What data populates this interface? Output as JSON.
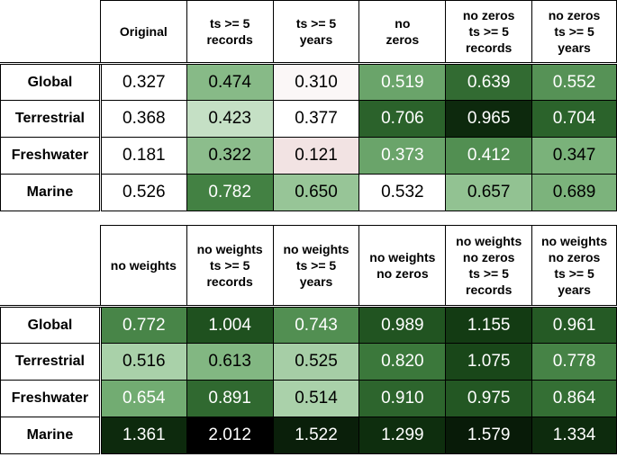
{
  "chart_data": [
    {
      "type": "heatmap",
      "columns": [
        "Original",
        "ts >= 5\nrecords",
        "ts >= 5\nyears",
        "no\nzeros",
        "no zeros\nts >= 5\nrecords",
        "no zeros\nts >= 5\nyears"
      ],
      "rows": [
        "Global",
        "Terrestrial",
        "Freshwater",
        "Marine"
      ],
      "values": [
        [
          0.327,
          0.474,
          0.31,
          0.519,
          0.639,
          0.552
        ],
        [
          0.368,
          0.423,
          0.377,
          0.706,
          0.965,
          0.704
        ],
        [
          0.181,
          0.322,
          0.121,
          0.373,
          0.412,
          0.347
        ],
        [
          0.526,
          0.782,
          0.65,
          0.532,
          0.657,
          0.689
        ]
      ],
      "labels": [
        [
          "0.327",
          "0.474",
          "0.310",
          "0.519",
          "0.639",
          "0.552"
        ],
        [
          "0.368",
          "0.423",
          "0.377",
          "0.706",
          "0.965",
          "0.704"
        ],
        [
          "0.181",
          "0.322",
          "0.121",
          "0.373",
          "0.412",
          "0.347"
        ],
        [
          "0.526",
          "0.782",
          "0.650",
          "0.532",
          "0.657",
          "0.689"
        ]
      ],
      "first_column_uncolored": true
    },
    {
      "type": "heatmap",
      "columns": [
        "no weights",
        "no weights\nts >= 5\nrecords",
        "no weights\nts >= 5\nyears",
        "no weights\nno zeros",
        "no weights\nno zeros\nts >= 5\nrecords",
        "no weights\nno zeros\nts >= 5\nyears"
      ],
      "rows": [
        "Global",
        "Terrestrial",
        "Freshwater",
        "Marine"
      ],
      "values": [
        [
          0.772,
          1.004,
          0.743,
          0.989,
          1.155,
          0.961
        ],
        [
          0.516,
          0.613,
          0.525,
          0.82,
          1.075,
          0.778
        ],
        [
          0.654,
          0.891,
          0.514,
          0.91,
          0.975,
          0.864
        ],
        [
          1.361,
          2.012,
          1.522,
          1.299,
          1.579,
          1.334
        ]
      ],
      "labels": [
        [
          "0.772",
          "1.004",
          "0.743",
          "0.989",
          "1.155",
          "0.961"
        ],
        [
          "0.516",
          "0.613",
          "0.525",
          "0.820",
          "1.075",
          "0.778"
        ],
        [
          "0.654",
          "0.891",
          "0.514",
          "0.910",
          "0.975",
          "0.864"
        ],
        [
          "1.361",
          "2.012",
          "1.522",
          "1.299",
          "1.579",
          "1.334"
        ]
      ],
      "first_column_uncolored": false
    }
  ],
  "colors": {
    "neutral": "#ffffff",
    "below_reference": "#f2e3e3",
    "light_green": "#e9f3e9",
    "dark_green": "#000000"
  }
}
